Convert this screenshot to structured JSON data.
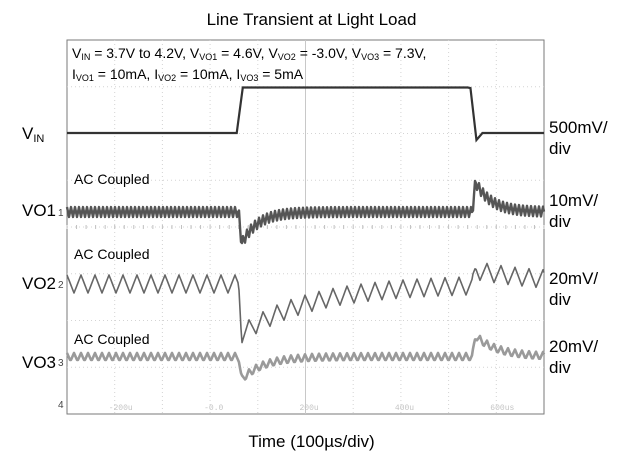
{
  "chart_data": {
    "type": "line",
    "title": "Line Transient at Light Load",
    "xlabel": "Time (100µs/div)",
    "conditions": {
      "line1": [
        {
          "t": "V"
        },
        {
          "sub": "IN"
        },
        {
          "t": " = 3.7V to 4.2V, V"
        },
        {
          "sub": "VO1"
        },
        {
          "t": " = 4.6V, V"
        },
        {
          "sub": "VO2"
        },
        {
          "t": " = -3.0V, V"
        },
        {
          "sub": "VO3"
        },
        {
          "t": " = 7.3V,"
        }
      ],
      "line2": [
        {
          "t": "I"
        },
        {
          "sub": "VO1"
        },
        {
          "t": " = 10mA, I"
        },
        {
          "sub": "VO2"
        },
        {
          "t": " = 10mA, I"
        },
        {
          "sub": "VO3"
        },
        {
          "t": " = 5mA"
        }
      ]
    },
    "x_divisions": 10,
    "x_div_unit": "100µs/div",
    "x_range_div": [
      0,
      10
    ],
    "grid": true,
    "coupling_label": "AC Coupled",
    "series": [
      {
        "name_main": "V",
        "name_sub": "IN",
        "scale_line1": "500mV/",
        "scale_line2": "div",
        "coupling": "",
        "low_mV": 0,
        "high_mV": 500,
        "step_up_div": 3.6,
        "step_down_div": 8.5,
        "color": "#333333"
      },
      {
        "name_main": "VO1",
        "name_sub": "",
        "scale_line1": "10mV/",
        "scale_line2": "div",
        "coupling": "AC Coupled",
        "spike_down_mV": -11,
        "spike_up_mV": 8,
        "ripple_mV": 2,
        "color": "#555555"
      },
      {
        "name_main": "VO2",
        "name_sub": "",
        "scale_line1": "20mV/",
        "scale_line2": "div",
        "coupling": "AC Coupled",
        "spike_down_mV": -28,
        "spike_up_mV": 9,
        "ripple_mV": 8,
        "color": "#666666"
      },
      {
        "name_main": "VO3",
        "name_sub": "",
        "scale_line1": "20mV/",
        "scale_line2": "div",
        "coupling": "AC Coupled",
        "spike_down_mV": -9,
        "spike_up_mV": 12,
        "ripple_mV": 2,
        "color": "#9a9a9a"
      }
    ],
    "scope_ticks": [
      "-200u",
      "-0.0",
      "200u",
      "400u",
      "600us"
    ],
    "ch_markers": [
      "1",
      "2",
      "3",
      "4"
    ]
  }
}
